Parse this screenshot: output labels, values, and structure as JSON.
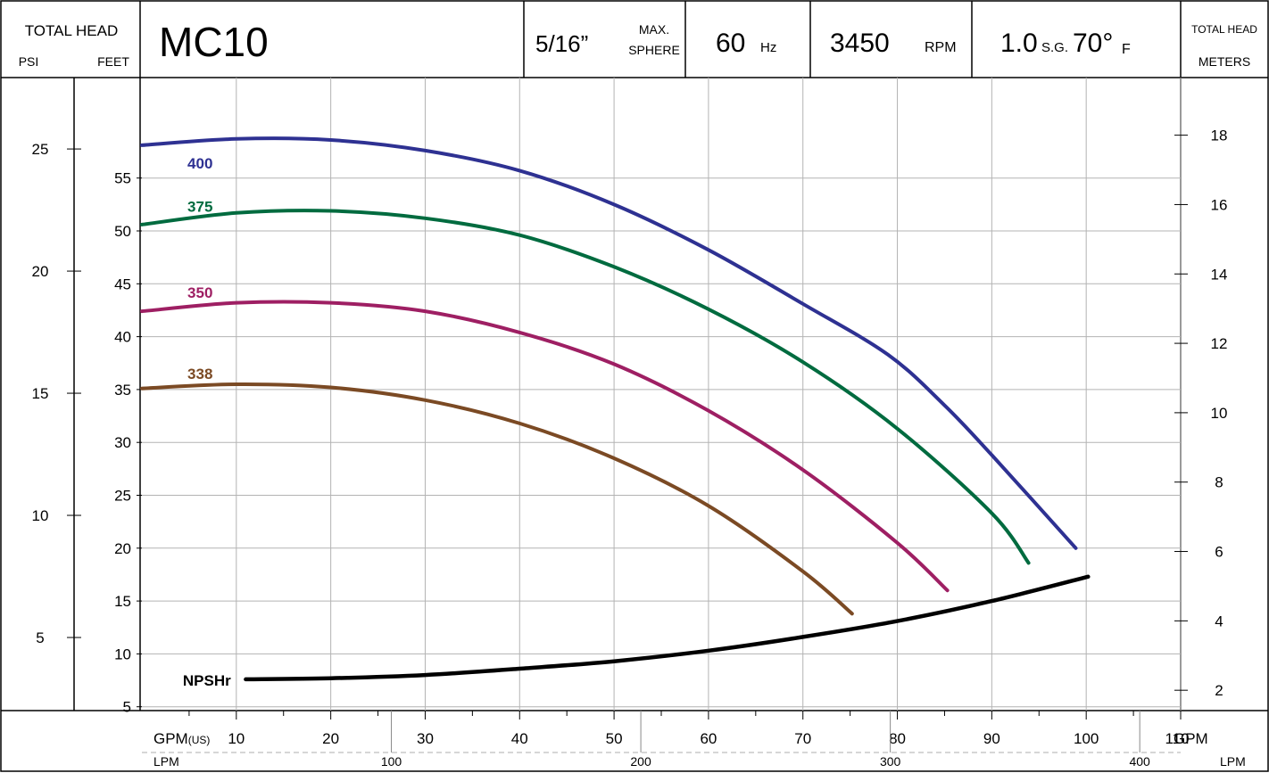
{
  "header": {
    "left_title": "TOTAL HEAD",
    "left_psi": "PSI",
    "left_feet": "FEET",
    "model": "MC10",
    "sphere_size": "5/16”",
    "sphere_max": "MAX.",
    "sphere_label": "SPHERE",
    "hz_value": "60",
    "hz_unit": "Hz",
    "rpm_value": "3450",
    "rpm_unit": "RPM",
    "sg_value": "1.0",
    "sg_unit": "S.G.",
    "temp_value": "70°",
    "temp_unit": "F",
    "right_title": "TOTAL HEAD",
    "right_meters": "METERS"
  },
  "footer": {
    "gpm_prefix": "GPM",
    "gpm_us": "(US)",
    "gpm_suffix": "GPM",
    "lpm_left": "LPM",
    "lpm_right": "LPM"
  },
  "chart_data": {
    "type": "line",
    "title": "MC10",
    "xlabel": "GPM(US)",
    "ylabel": "TOTAL HEAD FEET",
    "xlim": [
      0,
      110
    ],
    "ylim": [
      0,
      60
    ],
    "x_ticks": [
      10,
      20,
      30,
      40,
      50,
      60,
      70,
      80,
      90,
      100,
      110
    ],
    "y_ticks": [
      5,
      10,
      15,
      20,
      25,
      30,
      35,
      40,
      45,
      50,
      55
    ],
    "psi_ticks": [
      5,
      10,
      15,
      20,
      25
    ],
    "meter_ticks": [
      2,
      4,
      6,
      8,
      10,
      12,
      14,
      16,
      18
    ],
    "lpm_ticks": [
      100,
      200,
      300,
      400
    ],
    "grid": true,
    "series": [
      {
        "name": "400",
        "color": "#2e3192",
        "x": [
          0,
          10,
          20,
          30,
          40,
          50,
          60,
          70,
          79,
          85,
          90,
          98.9
        ],
        "y": [
          58.1,
          58.7,
          58.6,
          57.6,
          55.7,
          52.5,
          48.2,
          43.1,
          38.3,
          33.5,
          28.8,
          20.0
        ]
      },
      {
        "name": "375",
        "color": "#006b3f",
        "x": [
          0,
          10,
          20,
          30,
          40,
          50,
          60,
          70,
          80,
          90,
          93.9
        ],
        "y": [
          50.6,
          51.7,
          51.9,
          51.2,
          49.6,
          46.6,
          42.6,
          37.6,
          31.3,
          23.3,
          18.6
        ]
      },
      {
        "name": "350",
        "color": "#9e1f63",
        "x": [
          0,
          10,
          20,
          30,
          40,
          50,
          60,
          70,
          80,
          85.3
        ],
        "y": [
          42.4,
          43.2,
          43.2,
          42.4,
          40.4,
          37.4,
          33.0,
          27.4,
          20.5,
          16.0
        ]
      },
      {
        "name": "338",
        "color": "#7b4a24",
        "x": [
          0,
          10,
          20,
          30,
          40,
          50,
          60,
          70,
          75.2
        ],
        "y": [
          35.1,
          35.5,
          35.2,
          34.0,
          31.8,
          28.5,
          24.0,
          17.8,
          13.8
        ]
      },
      {
        "name": "NPSHr",
        "color": "#000000",
        "x": [
          11,
          20,
          30,
          40,
          50,
          60,
          70,
          80,
          90,
          100.2
        ],
        "y": [
          7.6,
          7.7,
          8.0,
          8.6,
          9.3,
          10.3,
          11.6,
          13.1,
          15.0,
          17.3
        ]
      }
    ],
    "series_labels": [
      {
        "text": "400",
        "color": "#2e3192",
        "x": 1.8,
        "y": 56.4
      },
      {
        "text": "375",
        "color": "#006b3f",
        "x": 1.8,
        "y": 52.3
      },
      {
        "text": "350",
        "color": "#9e1f63",
        "x": 1.8,
        "y": 44.2
      },
      {
        "text": "338",
        "color": "#7b4a24",
        "x": 1.8,
        "y": 36.5
      },
      {
        "text": "NPSHr",
        "color": "#000000",
        "x": 1.5,
        "y": 7.5
      }
    ]
  }
}
